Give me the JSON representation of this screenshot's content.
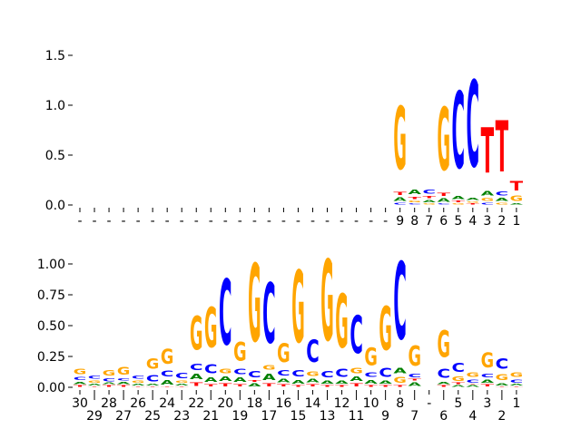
{
  "chart_data": [
    {
      "type": "sequence-logo",
      "panel": "top",
      "ylim": [
        0,
        1.55
      ],
      "yticks": [
        "0.0",
        "0.5",
        "1.0",
        "1.5"
      ],
      "ytick_values": [
        0,
        0.5,
        1.0,
        1.5
      ],
      "xlabels": [
        "-",
        "-",
        "-",
        "-",
        "-",
        "-",
        "-",
        "-",
        "-",
        "-",
        "-",
        "-",
        "-",
        "-",
        "-",
        "-",
        "-",
        "-",
        "-",
        "-",
        "-",
        "-",
        "9",
        "8",
        "7",
        "6",
        "5",
        "4",
        "3",
        "2",
        "1"
      ],
      "columns": [
        [],
        [],
        [],
        [],
        [],
        [],
        [],
        [],
        [],
        [],
        [],
        [],
        [],
        [],
        [],
        [],
        [],
        [],
        [],
        [],
        [],
        [],
        [
          [
            "C",
            0.03
          ],
          [
            "A",
            0.06
          ],
          [
            "T",
            0.05
          ],
          [
            "G",
            1.05
          ]
        ],
        [
          [
            "C",
            0.02
          ],
          [
            "G",
            0.03
          ],
          [
            "T",
            0.04
          ],
          [
            "A",
            0.08
          ]
        ],
        [
          [
            "G",
            0.02
          ],
          [
            "A",
            0.04
          ],
          [
            "T",
            0.04
          ],
          [
            "C",
            0.07
          ]
        ],
        [
          [
            "C",
            0.02
          ],
          [
            "A",
            0.06
          ],
          [
            "T",
            0.05
          ],
          [
            "G",
            1.05
          ]
        ],
        [
          [
            "G",
            0.02
          ],
          [
            "T",
            0.03
          ],
          [
            "A",
            0.05
          ],
          [
            "C",
            1.28
          ]
        ],
        [
          [
            "T",
            0.02
          ],
          [
            "G",
            0.02
          ],
          [
            "A",
            0.04
          ],
          [
            "C",
            1.44
          ]
        ],
        [
          [
            "C",
            0.03
          ],
          [
            "G",
            0.05
          ],
          [
            "A",
            0.08
          ],
          [
            "T",
            0.76
          ]
        ],
        [
          [
            "G",
            0.03
          ],
          [
            "A",
            0.05
          ],
          [
            "C",
            0.07
          ],
          [
            "T",
            0.86
          ]
        ],
        [
          [
            "A",
            0.02
          ],
          [
            "G",
            0.09
          ],
          [
            "T",
            0.16
          ]
        ]
      ]
    },
    {
      "type": "sequence-logo",
      "panel": "bottom",
      "ylim": [
        0,
        1.25
      ],
      "yticks": [
        "0.00",
        "0.25",
        "0.50",
        "0.75",
        "1.00"
      ],
      "ytick_values": [
        0,
        0.25,
        0.5,
        0.75,
        1.0
      ],
      "xlabels": [
        "30",
        "29",
        "28",
        "27",
        "26",
        "25",
        "24",
        "23",
        "22",
        "21",
        "20",
        "19",
        "18",
        "17",
        "16",
        "15",
        "14",
        "13",
        "12",
        "11",
        "10",
        "9",
        "8",
        "7",
        "-",
        "6",
        "5",
        "4",
        "3",
        "2",
        "1"
      ],
      "columns": [
        [
          [
            "T",
            0.02
          ],
          [
            "A",
            0.03
          ],
          [
            "C",
            0.04
          ],
          [
            "G",
            0.07
          ]
        ],
        [
          [
            "T",
            0.01
          ],
          [
            "A",
            0.02
          ],
          [
            "G",
            0.03
          ],
          [
            "C",
            0.04
          ]
        ],
        [
          [
            "T",
            0.02
          ],
          [
            "A",
            0.02
          ],
          [
            "C",
            0.04
          ],
          [
            "G",
            0.07
          ]
        ],
        [
          [
            "T",
            0.02
          ],
          [
            "A",
            0.03
          ],
          [
            "C",
            0.03
          ],
          [
            "G",
            0.1
          ]
        ],
        [
          [
            "T",
            0.01
          ],
          [
            "A",
            0.02
          ],
          [
            "G",
            0.03
          ],
          [
            "C",
            0.04
          ]
        ],
        [
          [
            "T",
            0.01
          ],
          [
            "A",
            0.02
          ],
          [
            "C",
            0.09
          ],
          [
            "G",
            0.14
          ]
        ],
        [
          [
            "T",
            0.01
          ],
          [
            "A",
            0.06
          ],
          [
            "C",
            0.08
          ],
          [
            "G",
            0.2
          ]
        ],
        [
          [
            "T",
            0.01
          ],
          [
            "A",
            0.02
          ],
          [
            "G",
            0.03
          ],
          [
            "C",
            0.07
          ]
        ],
        [
          [
            "T",
            0.05
          ],
          [
            "A",
            0.07
          ],
          [
            "C",
            0.09
          ],
          [
            "G",
            0.45
          ]
        ],
        [
          [
            "T",
            0.03
          ],
          [
            "A",
            0.06
          ],
          [
            "C",
            0.12
          ],
          [
            "G",
            0.54
          ]
        ],
        [
          [
            "T",
            0.04
          ],
          [
            "A",
            0.06
          ],
          [
            "G",
            0.06
          ],
          [
            "C",
            0.88
          ]
        ],
        [
          [
            "T",
            0.03
          ],
          [
            "A",
            0.06
          ],
          [
            "C",
            0.07
          ],
          [
            "G",
            0.25
          ]
        ],
        [
          [
            "A",
            0.04
          ],
          [
            "T",
            0.02
          ],
          [
            "C",
            0.09
          ],
          [
            "G",
            1.05
          ]
        ],
        [
          [
            "T",
            0.04
          ],
          [
            "A",
            0.09
          ],
          [
            "G",
            0.06
          ],
          [
            "C",
            0.81
          ]
        ],
        [
          [
            "T",
            0.03
          ],
          [
            "A",
            0.05
          ],
          [
            "C",
            0.07
          ],
          [
            "G",
            0.25
          ]
        ],
        [
          [
            "T",
            0.02
          ],
          [
            "A",
            0.05
          ],
          [
            "C",
            0.09
          ],
          [
            "G",
            0.97
          ]
        ],
        [
          [
            "T",
            0.03
          ],
          [
            "A",
            0.05
          ],
          [
            "G",
            0.06
          ],
          [
            "C",
            0.3
          ]
        ],
        [
          [
            "T",
            0.02
          ],
          [
            "A",
            0.04
          ],
          [
            "C",
            0.09
          ],
          [
            "G",
            1.09
          ]
        ],
        [
          [
            "T",
            0.02
          ],
          [
            "A",
            0.04
          ],
          [
            "C",
            0.11
          ],
          [
            "G",
            0.72
          ]
        ],
        [
          [
            "T",
            0.04
          ],
          [
            "A",
            0.06
          ],
          [
            "G",
            0.07
          ],
          [
            "C",
            0.51
          ]
        ],
        [
          [
            "T",
            0.02
          ],
          [
            "A",
            0.05
          ],
          [
            "C",
            0.06
          ],
          [
            "G",
            0.24
          ]
        ],
        [
          [
            "T",
            0.02
          ],
          [
            "A",
            0.04
          ],
          [
            "C",
            0.12
          ],
          [
            "G",
            0.59
          ]
        ],
        [
          [
            "T",
            0.02
          ],
          [
            "G",
            0.08
          ],
          [
            "A",
            0.07
          ],
          [
            "C",
            1.04
          ]
        ],
        [
          [
            "A",
            0.05
          ],
          [
            "T",
            0.02
          ],
          [
            "C",
            0.05
          ],
          [
            "G",
            0.27
          ]
        ],
        [],
        [
          [
            "T",
            0.02
          ],
          [
            "A",
            0.03
          ],
          [
            "C",
            0.12
          ],
          [
            "G",
            0.36
          ]
        ],
        [
          [
            "A",
            0.02
          ],
          [
            "T",
            0.02
          ],
          [
            "G",
            0.06
          ],
          [
            "C",
            0.12
          ]
        ],
        [
          [
            "A",
            0.02
          ],
          [
            "T",
            0.01
          ],
          [
            "C",
            0.04
          ],
          [
            "G",
            0.06
          ]
        ],
        [
          [
            "T",
            0.03
          ],
          [
            "A",
            0.04
          ],
          [
            "C",
            0.05
          ],
          [
            "G",
            0.2
          ]
        ],
        [
          [
            "T",
            0.01
          ],
          [
            "A",
            0.03
          ],
          [
            "G",
            0.08
          ],
          [
            "C",
            0.14
          ]
        ],
        [
          [
            "T",
            0.01
          ],
          [
            "A",
            0.02
          ],
          [
            "C",
            0.04
          ],
          [
            "G",
            0.06
          ]
        ]
      ]
    }
  ],
  "colors": {
    "A": "#008000",
    "C": "#0000ff",
    "G": "#ffa500",
    "T": "#ff0000"
  }
}
